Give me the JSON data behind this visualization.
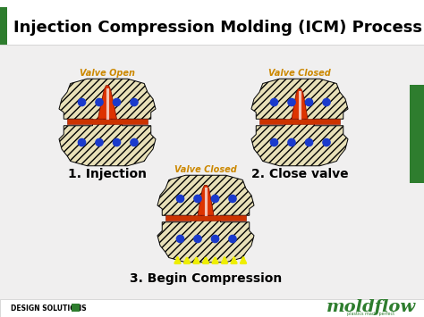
{
  "title": "Injection Compression Molding (ICM) Process",
  "title_fontsize": 13,
  "title_color": "#000000",
  "slide_bg": "#f5f5f5",
  "title_bg": "#ffffff",
  "content_bg": "#f0efef",
  "green_bar_color": "#2e7d2e",
  "label1": "1. Injection",
  "label2": "2. Close valve",
  "label3": "3. Begin Compression",
  "sublabel1": "Valve Open",
  "sublabel2": "Valve Closed",
  "sublabel3": "Valve Closed",
  "sublabel_color": "#cc8800",
  "label_fontsize": 10,
  "sublabel_fontsize": 7,
  "mold_fill": "#e8e0b8",
  "red_color": "#cc2200",
  "blue_dot_color": "#1a3acc",
  "runner_color": "#cc3300",
  "arrow_color": "#eeee00",
  "design_solutions_text": "DESIGN SOLUTIONS",
  "moldflow_color": "#2e7d2e",
  "bottom_bar_color": "#ffffff"
}
